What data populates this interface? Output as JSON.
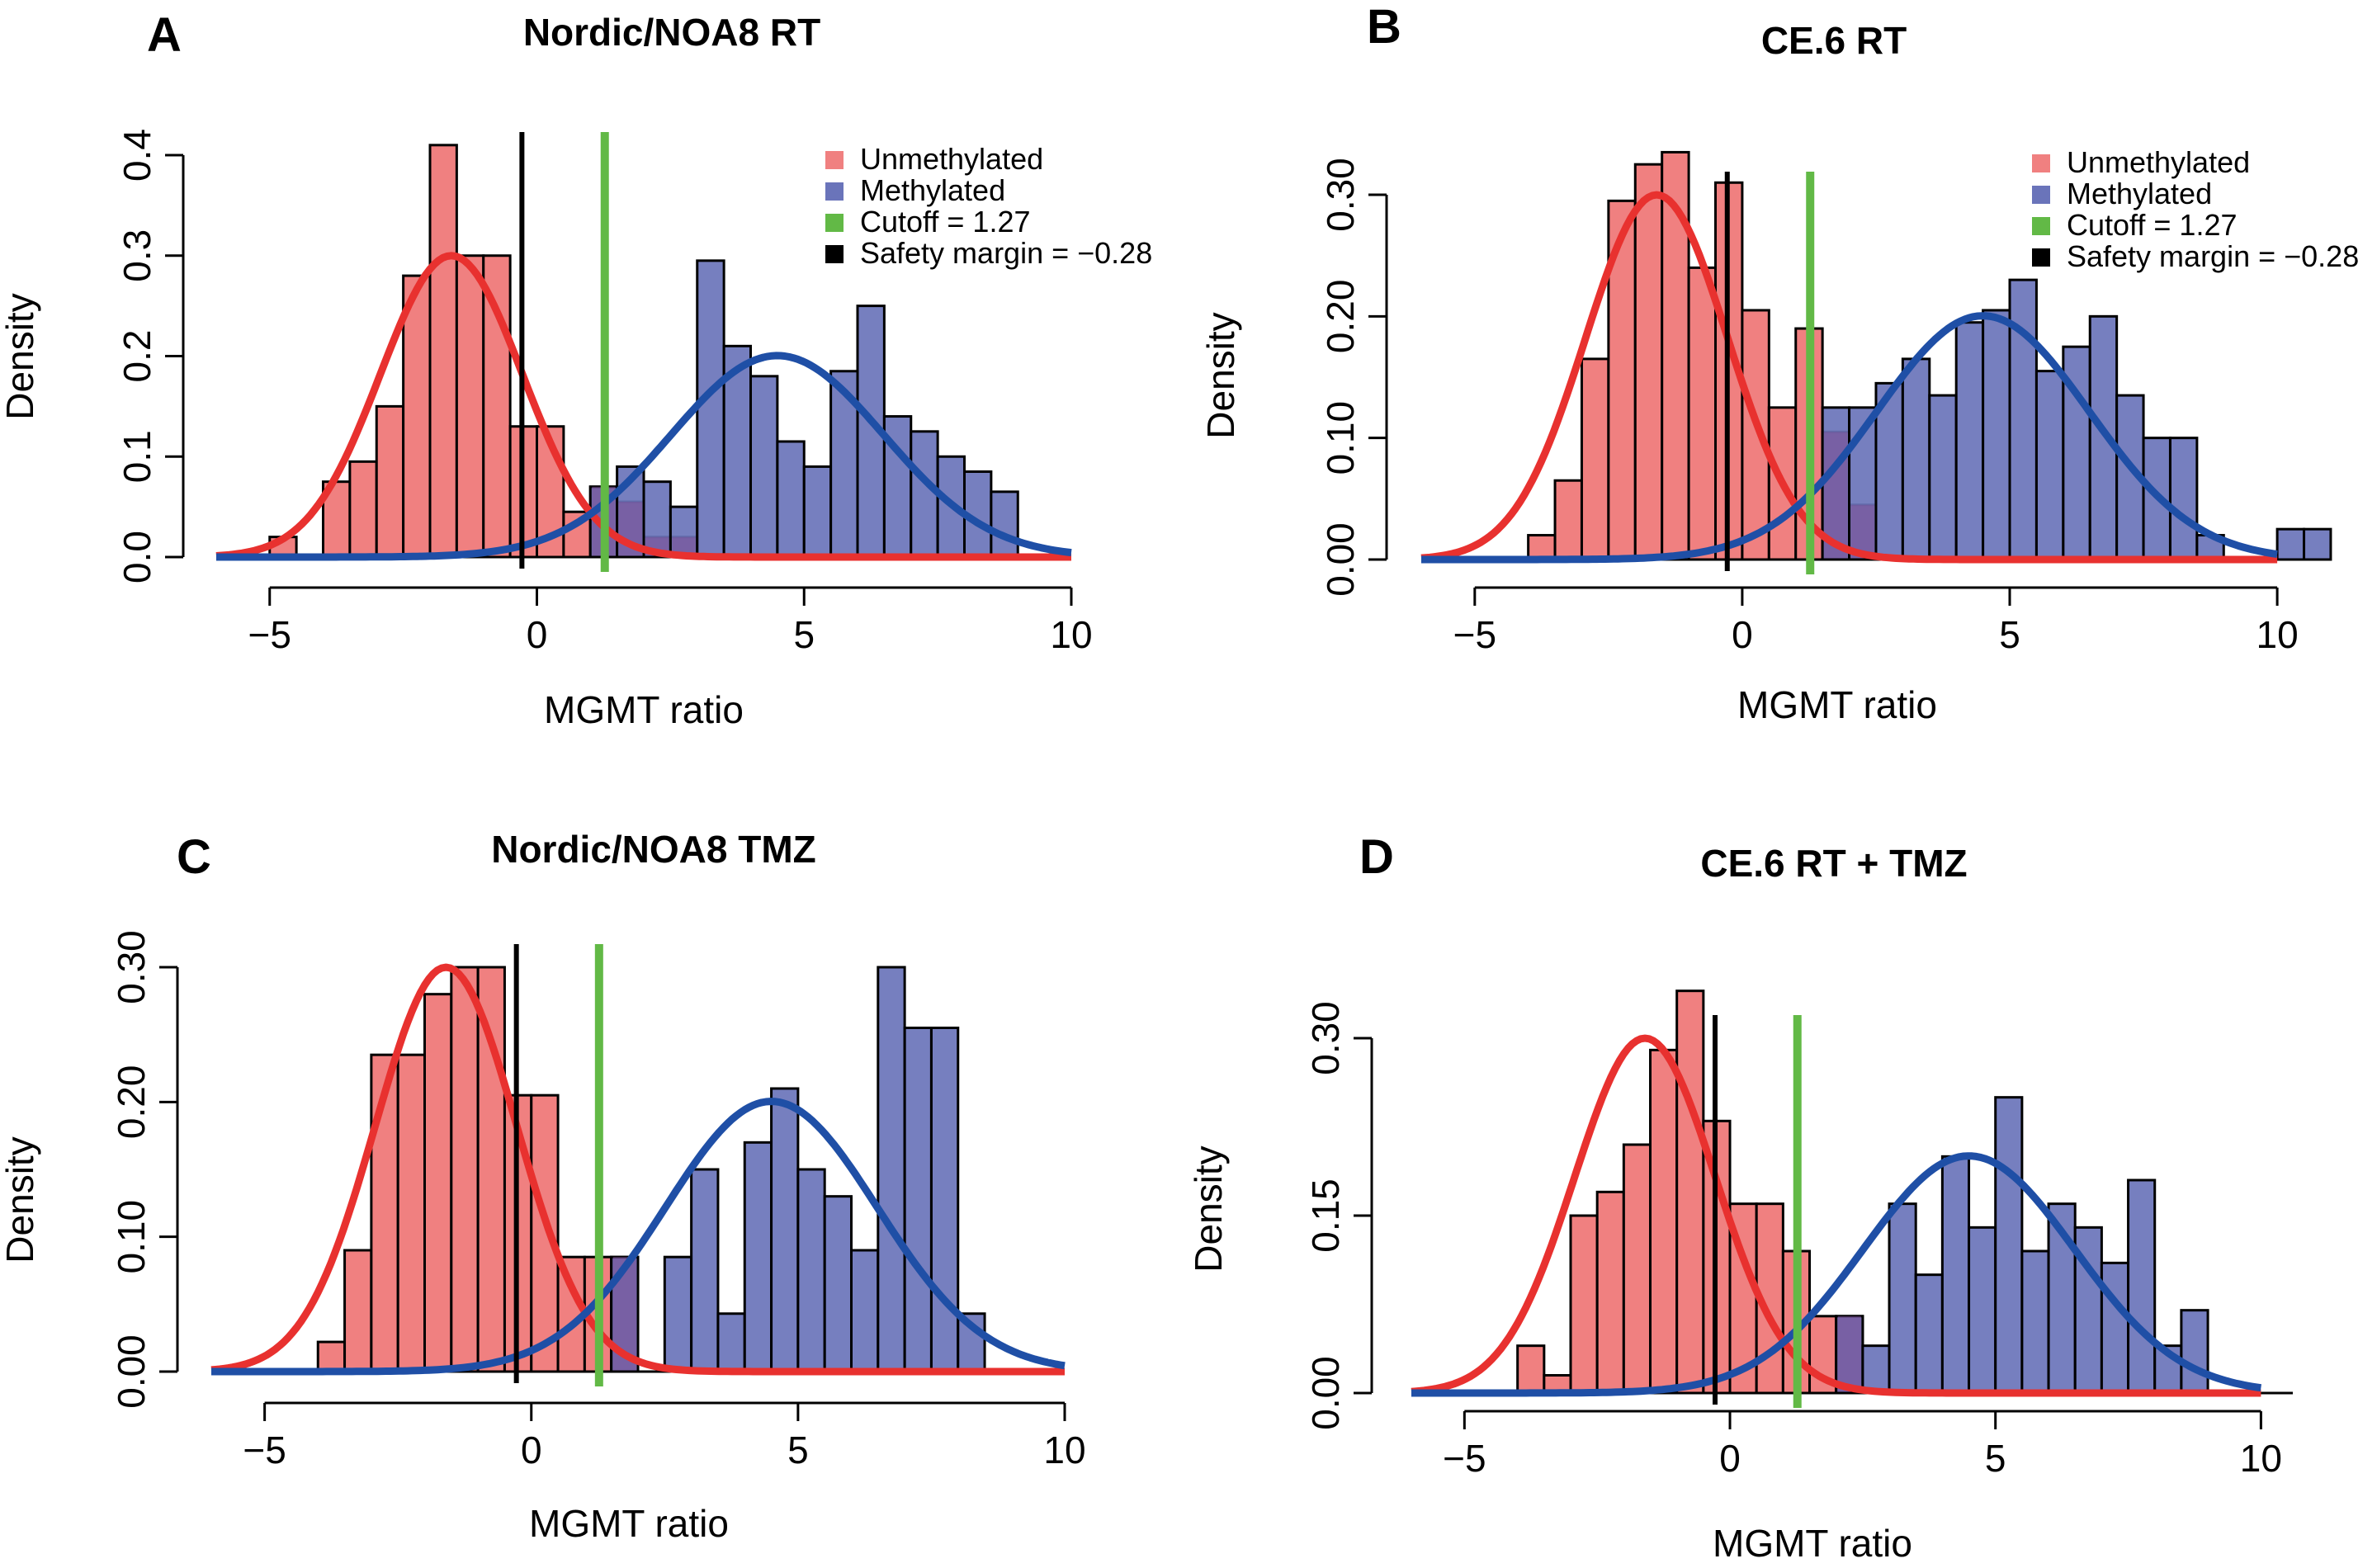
{
  "colors": {
    "unmethylated_fill": "#f08080",
    "methylated_fill": "#6a74ba",
    "overlap_fill": "#7a4f96",
    "unmethylated_curve": "#e8312f",
    "methylated_curve": "#1f4fa6",
    "cutoff": "#62b946",
    "safety": "#000000"
  },
  "legend": {
    "unmethylated": "Unmethylated",
    "methylated": "Methylated",
    "cutoff": "Cutoff = 1.27",
    "safety": "Safety margin = −0.28"
  },
  "chart_data": [
    {
      "panel": "A",
      "title": "Nordic/NOA8 RT",
      "type": "bar",
      "xlabel": "MGMT ratio",
      "ylabel": "Density",
      "xlim": [
        -6,
        10
      ],
      "ylim": [
        0,
        0.4
      ],
      "xticks": [
        -5,
        0,
        5,
        10
      ],
      "xtick_labels": [
        "−5",
        "0",
        "5",
        "10"
      ],
      "yticks": [
        0,
        0.1,
        0.2,
        0.3,
        0.4
      ],
      "ytick_labels": [
        "0.0",
        "0.1",
        "0.2",
        "0.3",
        "0.4"
      ],
      "bin_width": 0.5,
      "legend_position": "top-right",
      "show_legend": true,
      "cutoff": 1.27,
      "safety_margin": -0.28,
      "series": [
        {
          "name": "Unmethylated",
          "bins": [
            [
              -5.0,
              0.02
            ],
            [
              -4.5,
              0.0
            ],
            [
              -4.0,
              0.075
            ],
            [
              -3.5,
              0.095
            ],
            [
              -3.0,
              0.15
            ],
            [
              -2.5,
              0.28
            ],
            [
              -2.0,
              0.41
            ],
            [
              -1.5,
              0.3
            ],
            [
              -1.0,
              0.3
            ],
            [
              -0.5,
              0.13
            ],
            [
              0.0,
              0.13
            ],
            [
              0.5,
              0.045
            ],
            [
              1.0,
              0.07
            ],
            [
              1.5,
              0.055
            ],
            [
              2.0,
              0.02
            ],
            [
              2.5,
              0.02
            ]
          ]
        },
        {
          "name": "Methylated",
          "bins": [
            [
              1.0,
              0.07
            ],
            [
              1.5,
              0.09
            ],
            [
              2.0,
              0.075
            ],
            [
              2.5,
              0.05
            ],
            [
              3.0,
              0.295
            ],
            [
              3.5,
              0.21
            ],
            [
              4.0,
              0.18
            ],
            [
              4.5,
              0.115
            ],
            [
              5.0,
              0.09
            ],
            [
              5.5,
              0.185
            ],
            [
              6.0,
              0.25
            ],
            [
              6.5,
              0.14
            ],
            [
              7.0,
              0.125
            ],
            [
              7.5,
              0.1
            ],
            [
              8.0,
              0.085
            ],
            [
              8.5,
              0.065
            ]
          ]
        }
      ],
      "curves": [
        {
          "name": "Unmethylated",
          "mean": -1.6,
          "sd": 1.33
        },
        {
          "name": "Methylated",
          "mean": 4.5,
          "sd": 1.99
        }
      ]
    },
    {
      "panel": "B",
      "title": "CE.6 RT",
      "type": "bar",
      "xlabel": "MGMT ratio",
      "ylabel": "Density",
      "xlim": [
        -6,
        10.6
      ],
      "ylim": [
        0,
        0.3
      ],
      "xticks": [
        -5,
        0,
        5,
        10
      ],
      "xtick_labels": [
        "−5",
        "0",
        "5",
        "10"
      ],
      "yticks": [
        0,
        0.1,
        0.2,
        0.3
      ],
      "ytick_labels": [
        "0.00",
        "0.10",
        "0.20",
        "0.30"
      ],
      "bin_width": 0.5,
      "legend_position": "top-right",
      "show_legend": true,
      "cutoff": 1.27,
      "safety_margin": -0.28,
      "series": [
        {
          "name": "Unmethylated",
          "bins": [
            [
              -4.0,
              0.02
            ],
            [
              -3.5,
              0.065
            ],
            [
              -3.0,
              0.165
            ],
            [
              -2.5,
              0.295
            ],
            [
              -2.0,
              0.325
            ],
            [
              -1.5,
              0.335
            ],
            [
              -1.0,
              0.24
            ],
            [
              -0.5,
              0.31
            ],
            [
              0.0,
              0.205
            ],
            [
              0.5,
              0.125
            ],
            [
              1.0,
              0.19
            ],
            [
              1.5,
              0.105
            ],
            [
              2.0,
              0.045
            ]
          ]
        },
        {
          "name": "Methylated",
          "bins": [
            [
              1.5,
              0.125
            ],
            [
              2.0,
              0.125
            ],
            [
              2.5,
              0.145
            ],
            [
              3.0,
              0.165
            ],
            [
              3.5,
              0.135
            ],
            [
              4.0,
              0.195
            ],
            [
              4.5,
              0.205
            ],
            [
              5.0,
              0.23
            ],
            [
              5.5,
              0.155
            ],
            [
              6.0,
              0.175
            ],
            [
              6.5,
              0.2
            ],
            [
              7.0,
              0.135
            ],
            [
              7.5,
              0.1
            ],
            [
              8.0,
              0.1
            ],
            [
              8.5,
              0.02
            ],
            [
              9.0,
              0.0
            ],
            [
              9.5,
              0.0
            ],
            [
              10.0,
              0.025
            ],
            [
              10.5,
              0.025
            ]
          ]
        }
      ],
      "curves": [
        {
          "name": "Unmethylated",
          "mean": -1.6,
          "sd": 1.33
        },
        {
          "name": "Methylated",
          "mean": 4.5,
          "sd": 1.99
        }
      ]
    },
    {
      "panel": "C",
      "title": "Nordic/NOA8 TMZ",
      "type": "bar",
      "xlabel": "MGMT ratio",
      "ylabel": "Density",
      "xlim": [
        -6,
        10
      ],
      "ylim": [
        0,
        0.3
      ],
      "xticks": [
        -5,
        0,
        5,
        10
      ],
      "xtick_labels": [
        "−5",
        "0",
        "5",
        "10"
      ],
      "yticks": [
        0,
        0.1,
        0.2,
        0.3
      ],
      "ytick_labels": [
        "0.00",
        "0.10",
        "0.20",
        "0.30"
      ],
      "bin_width": 0.5,
      "show_legend": false,
      "cutoff": 1.27,
      "safety_margin": -0.28,
      "series": [
        {
          "name": "Unmethylated",
          "bins": [
            [
              -4.0,
              0.022
            ],
            [
              -3.5,
              0.09
            ],
            [
              -3.0,
              0.235
            ],
            [
              -2.5,
              0.235
            ],
            [
              -2.0,
              0.28
            ],
            [
              -1.5,
              0.3
            ],
            [
              -1.0,
              0.3
            ],
            [
              -0.5,
              0.205
            ],
            [
              0.0,
              0.205
            ],
            [
              0.5,
              0.085
            ],
            [
              1.0,
              0.085
            ],
            [
              1.5,
              0.085
            ]
          ]
        },
        {
          "name": "Methylated",
          "bins": [
            [
              1.5,
              0.085
            ],
            [
              2.0,
              0.0
            ],
            [
              2.5,
              0.085
            ],
            [
              3.0,
              0.15
            ],
            [
              3.5,
              0.043
            ],
            [
              4.0,
              0.17
            ],
            [
              4.5,
              0.21
            ],
            [
              5.0,
              0.15
            ],
            [
              5.5,
              0.13
            ],
            [
              6.0,
              0.09
            ],
            [
              6.5,
              0.3
            ],
            [
              7.0,
              0.255
            ],
            [
              7.5,
              0.255
            ],
            [
              8.0,
              0.043
            ]
          ]
        }
      ],
      "curves": [
        {
          "name": "Unmethylated",
          "mean": -1.6,
          "sd": 1.33
        },
        {
          "name": "Methylated",
          "mean": 4.5,
          "sd": 1.99
        }
      ]
    },
    {
      "panel": "D",
      "title": "CE.6 RT + TMZ",
      "type": "bar",
      "xlabel": "MGMT ratio",
      "ylabel": "Density",
      "xlim": [
        -6,
        10.6
      ],
      "ylim": [
        0,
        0.35
      ],
      "xticks": [
        -5,
        0,
        5,
        10
      ],
      "xtick_labels": [
        "−5",
        "0",
        "5",
        "10"
      ],
      "yticks": [
        0,
        0.15,
        0.3
      ],
      "ytick_labels": [
        "0.00",
        "0.15",
        "0.30"
      ],
      "bin_width": 0.5,
      "show_legend": false,
      "cutoff": 1.27,
      "safety_margin": -0.28,
      "series": [
        {
          "name": "Unmethylated",
          "bins": [
            [
              -4.0,
              0.04
            ],
            [
              -3.5,
              0.015
            ],
            [
              -3.0,
              0.15
            ],
            [
              -2.5,
              0.17
            ],
            [
              -2.0,
              0.21
            ],
            [
              -1.5,
              0.29
            ],
            [
              -1.0,
              0.34
            ],
            [
              -0.5,
              0.23
            ],
            [
              0.0,
              0.16
            ],
            [
              0.5,
              0.16
            ],
            [
              1.0,
              0.12
            ],
            [
              1.5,
              0.065
            ],
            [
              2.0,
              0.065
            ]
          ]
        },
        {
          "name": "Methylated",
          "bins": [
            [
              2.0,
              0.065
            ],
            [
              2.5,
              0.04
            ],
            [
              3.0,
              0.16
            ],
            [
              3.5,
              0.1
            ],
            [
              4.0,
              0.2
            ],
            [
              4.5,
              0.14
            ],
            [
              5.0,
              0.25
            ],
            [
              5.5,
              0.12
            ],
            [
              6.0,
              0.16
            ],
            [
              6.5,
              0.14
            ],
            [
              7.0,
              0.11
            ],
            [
              7.5,
              0.18
            ],
            [
              8.0,
              0.04
            ],
            [
              8.5,
              0.07
            ]
          ]
        }
      ],
      "curves": [
        {
          "name": "Unmethylated",
          "mean": -1.6,
          "sd": 1.33
        },
        {
          "name": "Methylated",
          "mean": 4.5,
          "sd": 1.99
        }
      ]
    }
  ]
}
